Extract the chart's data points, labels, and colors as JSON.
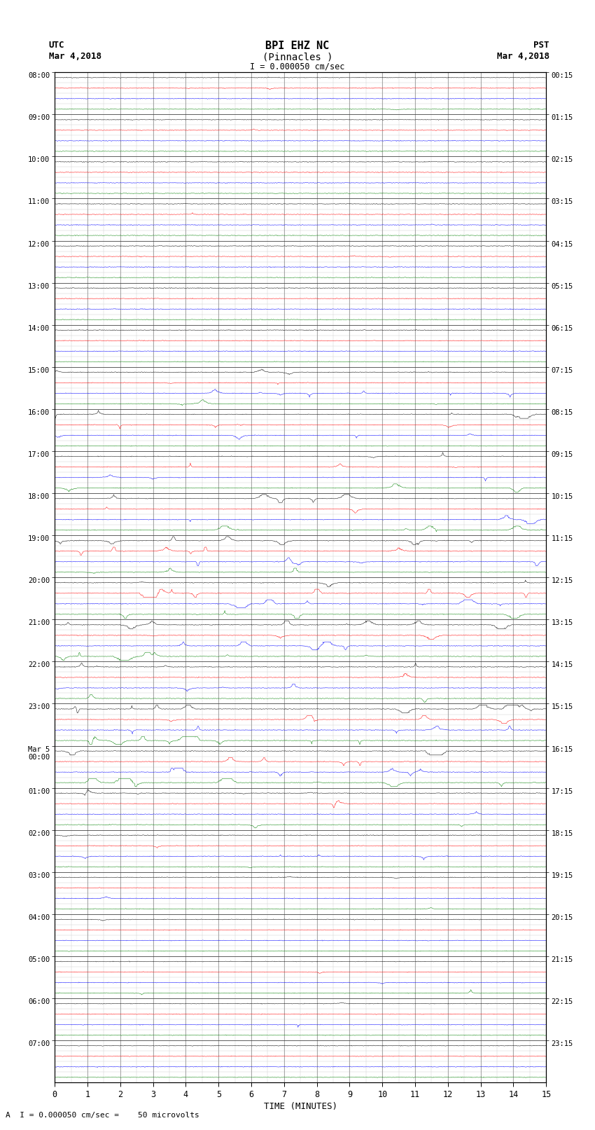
{
  "title_line1": "BPI EHZ NC",
  "title_line2": "(Pinnacles )",
  "scale_label": "I = 0.000050 cm/sec",
  "left_label_top": "UTC",
  "left_label_date": "Mar 4,2018",
  "right_label_top": "PST",
  "right_label_date": "Mar 4,2018",
  "xlabel": "TIME (MINUTES)",
  "footer_label": "A  I = 0.000050 cm/sec =    50 microvolts",
  "utc_times_labeled": [
    "08:00",
    "09:00",
    "10:00",
    "11:00",
    "12:00",
    "13:00",
    "14:00",
    "15:00",
    "16:00",
    "17:00",
    "18:00",
    "19:00",
    "20:00",
    "21:00",
    "22:00",
    "23:00",
    "Mar 5\n00:00",
    "01:00",
    "02:00",
    "03:00",
    "04:00",
    "05:00",
    "06:00",
    "07:00"
  ],
  "pst_times_labeled": [
    "00:15",
    "01:15",
    "02:15",
    "03:15",
    "04:15",
    "05:15",
    "06:15",
    "07:15",
    "08:15",
    "09:15",
    "10:15",
    "11:15",
    "12:15",
    "13:15",
    "14:15",
    "15:15",
    "16:15",
    "17:15",
    "18:15",
    "19:15",
    "20:15",
    "21:15",
    "22:15",
    "23:15"
  ],
  "n_hours": 24,
  "traces_per_hour": 4,
  "n_cols_minutes": 15,
  "colors_cycle": [
    "black",
    "red",
    "blue",
    "green"
  ],
  "bg_color": "white",
  "grid_color": "#bbbbbb",
  "trace_amplitude": 0.38,
  "noise_base": 0.015,
  "figsize": [
    8.5,
    16.13
  ],
  "dpi": 100
}
